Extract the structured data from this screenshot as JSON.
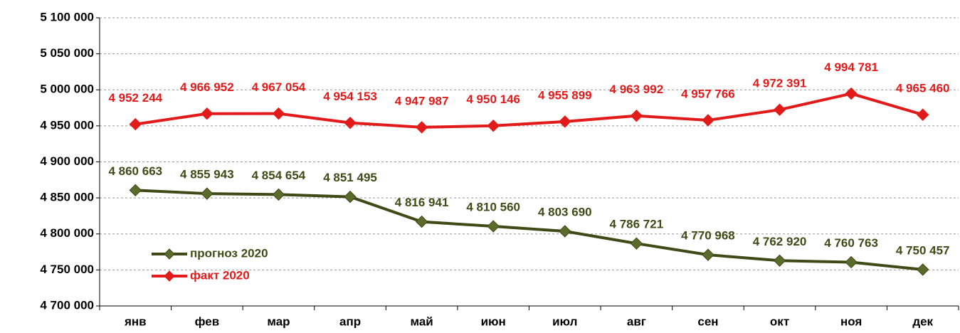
{
  "chart_data": {
    "type": "line",
    "categories": [
      "янв",
      "фев",
      "мар",
      "апр",
      "май",
      "июн",
      "июл",
      "авг",
      "сен",
      "окт",
      "ноя",
      "дек"
    ],
    "series": [
      {
        "name": "прогноз 2020",
        "color": "#3f4a16",
        "marker_color": "#5b6b2b",
        "values": [
          4860663,
          4855943,
          4854654,
          4851495,
          4816941,
          4810560,
          4803690,
          4786721,
          4770968,
          4762920,
          4760763,
          4750457
        ],
        "value_labels": [
          "4 860 663",
          "4 855 943",
          "4 854 654",
          "4 851 495",
          "4 816 941",
          "4 810 560",
          "4 803 690",
          "4 786 721",
          "4 770 968",
          "4 762 920",
          "4 760 763",
          "4 750 457"
        ]
      },
      {
        "name": "факт 2020",
        "color": "#e31a1a",
        "marker_color": "#e31a1a",
        "values": [
          4952244,
          4966952,
          4967054,
          4954153,
          4947987,
          4950146,
          4955899,
          4963992,
          4957766,
          4972391,
          4994781,
          4965460
        ],
        "value_labels": [
          "4 952 244",
          "4 966 952",
          "4 967 054",
          "4 954 153",
          "4 947 987",
          "4 950 146",
          "4 955 899",
          "4 963 992",
          "4 957 766",
          "4 972 391",
          "4 994 781",
          "4 965 460"
        ]
      }
    ],
    "ylim": [
      4700000,
      5100000
    ],
    "yticks": [
      {
        "value": 4700000,
        "label": "4 700 000"
      },
      {
        "value": 4750000,
        "label": "4 750 000"
      },
      {
        "value": 4800000,
        "label": "4 800 000"
      },
      {
        "value": 4850000,
        "label": "4 850 000"
      },
      {
        "value": 4900000,
        "label": "4 900 000"
      },
      {
        "value": 4950000,
        "label": "4 950 000"
      },
      {
        "value": 5000000,
        "label": "5 000 000"
      },
      {
        "value": 5050000,
        "label": "5 050 000"
      },
      {
        "value": 5100000,
        "label": "5 100 000"
      }
    ],
    "grid": true,
    "legend": "lower left"
  }
}
